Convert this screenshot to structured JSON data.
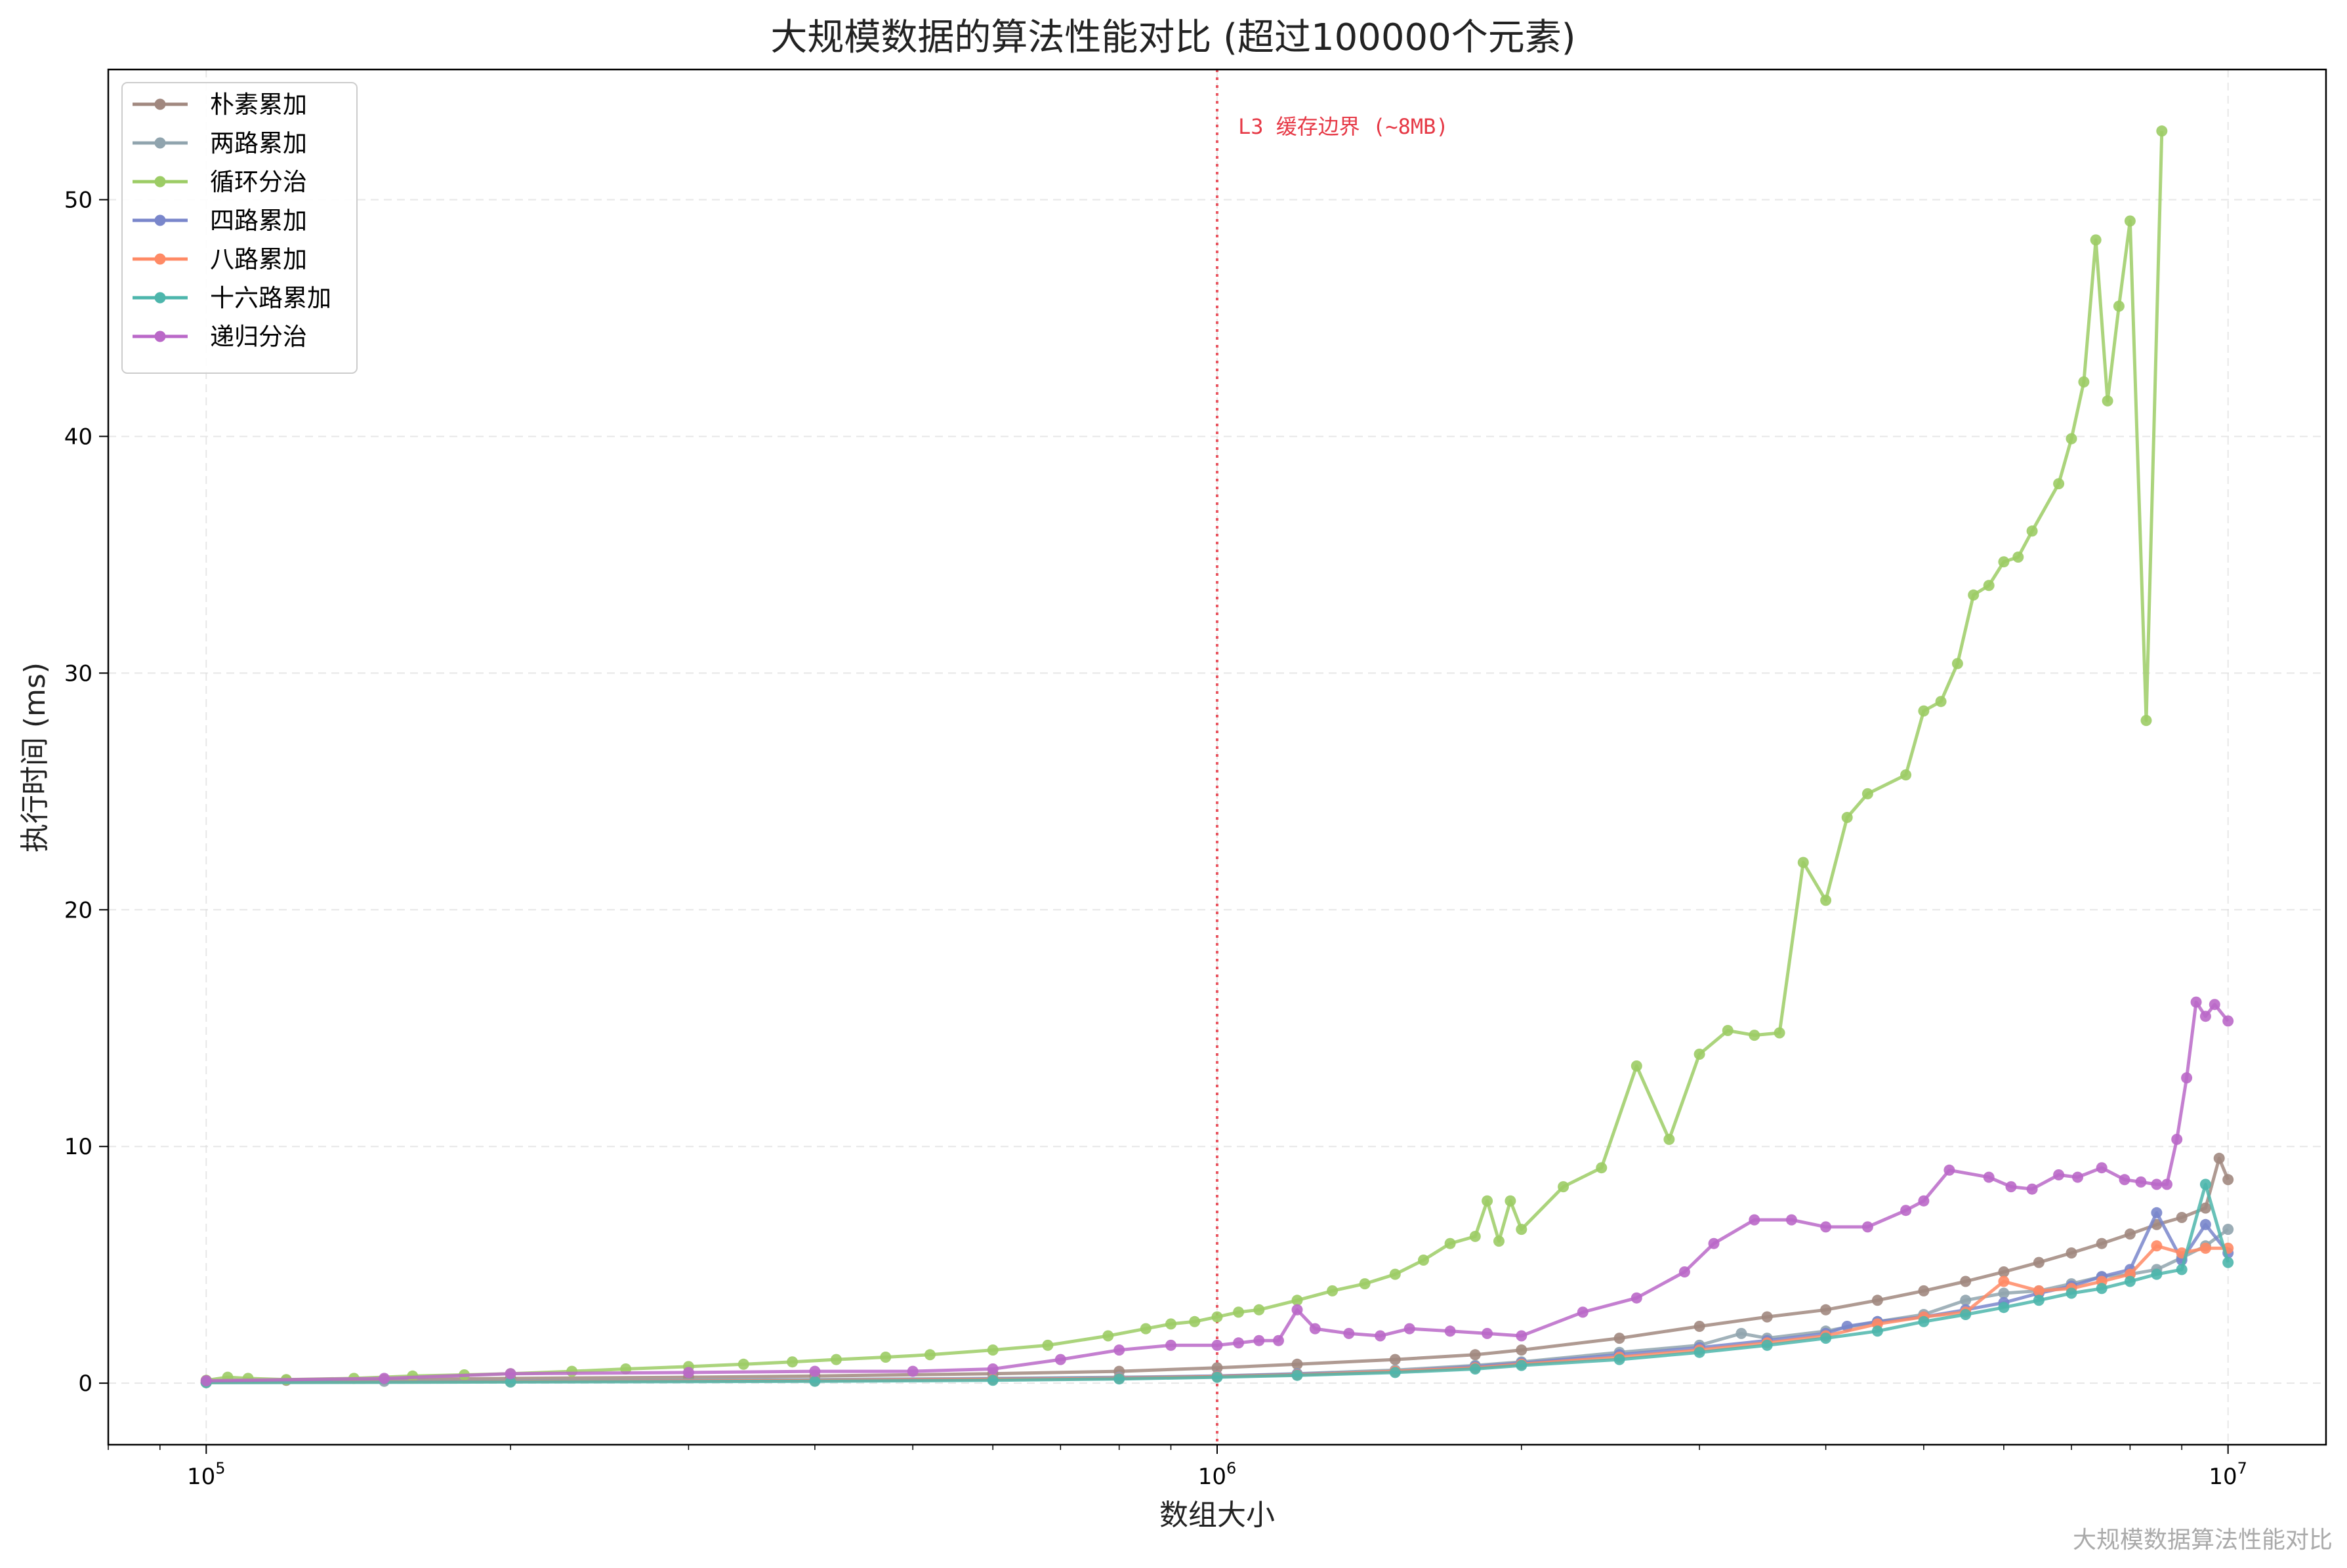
{
  "chart_data": {
    "type": "line",
    "title": "大规模数据的算法性能对比 (超过100000个元素)",
    "xlabel": "数组大小",
    "ylabel": "执行时间 (ms)",
    "x_scale": "log",
    "xlim": [
      80000,
      12500000
    ],
    "ylim": [
      -2.6,
      55.5
    ],
    "x_ticks": [
      {
        "value": 100000,
        "base": "10",
        "exp": "5"
      },
      {
        "value": 1000000,
        "base": "10",
        "exp": "6"
      },
      {
        "value": 10000000,
        "base": "10",
        "exp": "7"
      }
    ],
    "y_ticks": [
      0,
      10,
      20,
      30,
      40,
      50
    ],
    "grid": true,
    "legend_position": "top-left",
    "vline": {
      "x": 1000000,
      "label": "L3 缓存边界 (~8MB)",
      "color": "#e63946"
    },
    "watermark": "大规模数据算法性能对比",
    "series": [
      {
        "name": "朴素累加",
        "color": "#a1887f",
        "points": [
          [
            100000,
            0.1
          ],
          [
            120000,
            0.12
          ],
          [
            150000,
            0.15
          ],
          [
            200000,
            0.2
          ],
          [
            300000,
            0.25
          ],
          [
            400000,
            0.3
          ],
          [
            600000,
            0.4
          ],
          [
            800000,
            0.5
          ],
          [
            1000000,
            0.65
          ],
          [
            1200000,
            0.8
          ],
          [
            1500000,
            1.0
          ],
          [
            1800000,
            1.2
          ],
          [
            2000000,
            1.4
          ],
          [
            2500000,
            1.9
          ],
          [
            3000000,
            2.4
          ],
          [
            3500000,
            2.8
          ],
          [
            4000000,
            3.1
          ],
          [
            4500000,
            3.5
          ],
          [
            5000000,
            3.9
          ],
          [
            5500000,
            4.3
          ],
          [
            6000000,
            4.7
          ],
          [
            6500000,
            5.1
          ],
          [
            7000000,
            5.5
          ],
          [
            7500000,
            5.9
          ],
          [
            8000000,
            6.3
          ],
          [
            8500000,
            6.7
          ],
          [
            9000000,
            7.0
          ],
          [
            9500000,
            7.4
          ],
          [
            9800000,
            9.5
          ],
          [
            10000000,
            8.6
          ]
        ]
      },
      {
        "name": "两路累加",
        "color": "#90a4ae",
        "points": [
          [
            100000,
            0.05
          ],
          [
            150000,
            0.08
          ],
          [
            200000,
            0.1
          ],
          [
            400000,
            0.15
          ],
          [
            600000,
            0.2
          ],
          [
            800000,
            0.25
          ],
          [
            1000000,
            0.3
          ],
          [
            1200000,
            0.4
          ],
          [
            1500000,
            0.55
          ],
          [
            1800000,
            0.75
          ],
          [
            2000000,
            0.9
          ],
          [
            2500000,
            1.3
          ],
          [
            3000000,
            1.6
          ],
          [
            3300000,
            2.1
          ],
          [
            3500000,
            1.9
          ],
          [
            4000000,
            2.2
          ],
          [
            4500000,
            2.6
          ],
          [
            5000000,
            2.9
          ],
          [
            5500000,
            3.5
          ],
          [
            6000000,
            3.8
          ],
          [
            6500000,
            3.9
          ],
          [
            7000000,
            4.2
          ],
          [
            7500000,
            4.5
          ],
          [
            8000000,
            4.6
          ],
          [
            8500000,
            4.8
          ],
          [
            9000000,
            5.3
          ],
          [
            9500000,
            5.8
          ],
          [
            10000000,
            6.5
          ]
        ]
      },
      {
        "name": "循环分治",
        "color": "#9ccc65",
        "points": [
          [
            100000,
            0.12
          ],
          [
            105000,
            0.25
          ],
          [
            110000,
            0.2
          ],
          [
            120000,
            0.15
          ],
          [
            140000,
            0.2
          ],
          [
            160000,
            0.3
          ],
          [
            180000,
            0.35
          ],
          [
            200000,
            0.4
          ],
          [
            230000,
            0.5
          ],
          [
            260000,
            0.6
          ],
          [
            300000,
            0.7
          ],
          [
            340000,
            0.8
          ],
          [
            380000,
            0.9
          ],
          [
            420000,
            1.0
          ],
          [
            470000,
            1.1
          ],
          [
            520000,
            1.2
          ],
          [
            600000,
            1.4
          ],
          [
            680000,
            1.6
          ],
          [
            780000,
            2.0
          ],
          [
            850000,
            2.3
          ],
          [
            900000,
            2.5
          ],
          [
            950000,
            2.6
          ],
          [
            1000000,
            2.8
          ],
          [
            1050000,
            3.0
          ],
          [
            1100000,
            3.1
          ],
          [
            1200000,
            3.5
          ],
          [
            1300000,
            3.9
          ],
          [
            1400000,
            4.2
          ],
          [
            1500000,
            4.6
          ],
          [
            1600000,
            5.2
          ],
          [
            1700000,
            5.9
          ],
          [
            1800000,
            6.2
          ],
          [
            1850000,
            7.7
          ],
          [
            1900000,
            6.0
          ],
          [
            1950000,
            7.7
          ],
          [
            2000000,
            6.5
          ],
          [
            2200000,
            8.3
          ],
          [
            2400000,
            9.1
          ],
          [
            2600000,
            13.4
          ],
          [
            2800000,
            10.3
          ],
          [
            3000000,
            13.9
          ],
          [
            3200000,
            14.9
          ],
          [
            3400000,
            14.7
          ],
          [
            3600000,
            14.8
          ],
          [
            3800000,
            22.0
          ],
          [
            4000000,
            20.4
          ],
          [
            4200000,
            23.9
          ],
          [
            4400000,
            24.9
          ],
          [
            4800000,
            25.7
          ],
          [
            5000000,
            28.4
          ],
          [
            5200000,
            28.8
          ],
          [
            5400000,
            30.4
          ],
          [
            5600000,
            33.3
          ],
          [
            5800000,
            33.7
          ],
          [
            6000000,
            34.7
          ],
          [
            6200000,
            34.9
          ],
          [
            6400000,
            36.0
          ],
          [
            6800000,
            38.0
          ],
          [
            7000000,
            39.9
          ],
          [
            7200000,
            42.3
          ],
          [
            7400000,
            48.3
          ],
          [
            7600000,
            41.5
          ],
          [
            7800000,
            45.5
          ],
          [
            8000000,
            49.1
          ],
          [
            8300000,
            28.0
          ],
          [
            8600000,
            52.9
          ]
        ]
      },
      {
        "name": "四路累加",
        "color": "#7986cb",
        "points": [
          [
            100000,
            0.04
          ],
          [
            200000,
            0.08
          ],
          [
            400000,
            0.12
          ],
          [
            600000,
            0.18
          ],
          [
            800000,
            0.22
          ],
          [
            1000000,
            0.3
          ],
          [
            1200000,
            0.38
          ],
          [
            1500000,
            0.5
          ],
          [
            1800000,
            0.7
          ],
          [
            2000000,
            0.85
          ],
          [
            2500000,
            1.2
          ],
          [
            3000000,
            1.5
          ],
          [
            3500000,
            1.8
          ],
          [
            4000000,
            2.1
          ],
          [
            4200000,
            2.4
          ],
          [
            4500000,
            2.6
          ],
          [
            5000000,
            2.8
          ],
          [
            5500000,
            3.1
          ],
          [
            6000000,
            3.4
          ],
          [
            6500000,
            3.8
          ],
          [
            7000000,
            4.1
          ],
          [
            7500000,
            4.5
          ],
          [
            8000000,
            4.8
          ],
          [
            8500000,
            7.2
          ],
          [
            9000000,
            5.2
          ],
          [
            9500000,
            6.7
          ],
          [
            10000000,
            5.5
          ]
        ]
      },
      {
        "name": "八路累加",
        "color": "#ff8a65",
        "points": [
          [
            100000,
            0.03
          ],
          [
            200000,
            0.07
          ],
          [
            400000,
            0.11
          ],
          [
            600000,
            0.16
          ],
          [
            800000,
            0.2
          ],
          [
            1000000,
            0.28
          ],
          [
            1200000,
            0.35
          ],
          [
            1500000,
            0.5
          ],
          [
            1800000,
            0.65
          ],
          [
            2000000,
            0.8
          ],
          [
            2500000,
            1.1
          ],
          [
            3000000,
            1.4
          ],
          [
            3500000,
            1.7
          ],
          [
            4000000,
            2.0
          ],
          [
            4500000,
            2.5
          ],
          [
            5000000,
            2.8
          ],
          [
            5500000,
            3.0
          ],
          [
            6000000,
            4.3
          ],
          [
            6500000,
            3.9
          ],
          [
            7000000,
            4.0
          ],
          [
            7500000,
            4.3
          ],
          [
            8000000,
            4.6
          ],
          [
            8500000,
            5.8
          ],
          [
            9000000,
            5.5
          ],
          [
            9500000,
            5.7
          ],
          [
            10000000,
            5.7
          ]
        ]
      },
      {
        "name": "十六路累加",
        "color": "#4db6ac",
        "points": [
          [
            100000,
            0.02
          ],
          [
            200000,
            0.05
          ],
          [
            400000,
            0.08
          ],
          [
            600000,
            0.12
          ],
          [
            800000,
            0.18
          ],
          [
            1000000,
            0.25
          ],
          [
            1200000,
            0.33
          ],
          [
            1500000,
            0.45
          ],
          [
            1800000,
            0.6
          ],
          [
            2000000,
            0.75
          ],
          [
            2500000,
            1.0
          ],
          [
            3000000,
            1.3
          ],
          [
            3500000,
            1.6
          ],
          [
            4000000,
            1.9
          ],
          [
            4500000,
            2.2
          ],
          [
            5000000,
            2.6
          ],
          [
            5500000,
            2.9
          ],
          [
            6000000,
            3.2
          ],
          [
            6500000,
            3.5
          ],
          [
            7000000,
            3.8
          ],
          [
            7500000,
            4.0
          ],
          [
            8000000,
            4.3
          ],
          [
            8500000,
            4.6
          ],
          [
            9000000,
            4.8
          ],
          [
            9500000,
            8.4
          ],
          [
            10000000,
            5.1
          ]
        ]
      },
      {
        "name": "递归分治",
        "color": "#ba68c8",
        "points": [
          [
            100000,
            0.1
          ],
          [
            150000,
            0.2
          ],
          [
            200000,
            0.4
          ],
          [
            300000,
            0.45
          ],
          [
            400000,
            0.5
          ],
          [
            500000,
            0.5
          ],
          [
            600000,
            0.6
          ],
          [
            700000,
            1.0
          ],
          [
            800000,
            1.4
          ],
          [
            900000,
            1.6
          ],
          [
            1000000,
            1.6
          ],
          [
            1050000,
            1.7
          ],
          [
            1100000,
            1.8
          ],
          [
            1150000,
            1.8
          ],
          [
            1200000,
            3.1
          ],
          [
            1250000,
            2.3
          ],
          [
            1350000,
            2.1
          ],
          [
            1450000,
            2.0
          ],
          [
            1550000,
            2.3
          ],
          [
            1700000,
            2.2
          ],
          [
            1850000,
            2.1
          ],
          [
            2000000,
            2.0
          ],
          [
            2300000,
            3.0
          ],
          [
            2600000,
            3.6
          ],
          [
            2900000,
            4.7
          ],
          [
            3100000,
            5.9
          ],
          [
            3400000,
            6.9
          ],
          [
            3700000,
            6.9
          ],
          [
            4000000,
            6.6
          ],
          [
            4400000,
            6.6
          ],
          [
            4800000,
            7.3
          ],
          [
            5000000,
            7.7
          ],
          [
            5300000,
            9.0
          ],
          [
            5800000,
            8.7
          ],
          [
            6100000,
            8.3
          ],
          [
            6400000,
            8.2
          ],
          [
            6800000,
            8.8
          ],
          [
            7100000,
            8.7
          ],
          [
            7500000,
            9.1
          ],
          [
            7900000,
            8.6
          ],
          [
            8200000,
            8.5
          ],
          [
            8500000,
            8.4
          ],
          [
            8700000,
            8.4
          ],
          [
            8900000,
            10.3
          ],
          [
            9100000,
            12.9
          ],
          [
            9300000,
            16.1
          ],
          [
            9500000,
            15.5
          ],
          [
            9700000,
            16.0
          ],
          [
            10000000,
            15.3
          ]
        ]
      }
    ]
  }
}
